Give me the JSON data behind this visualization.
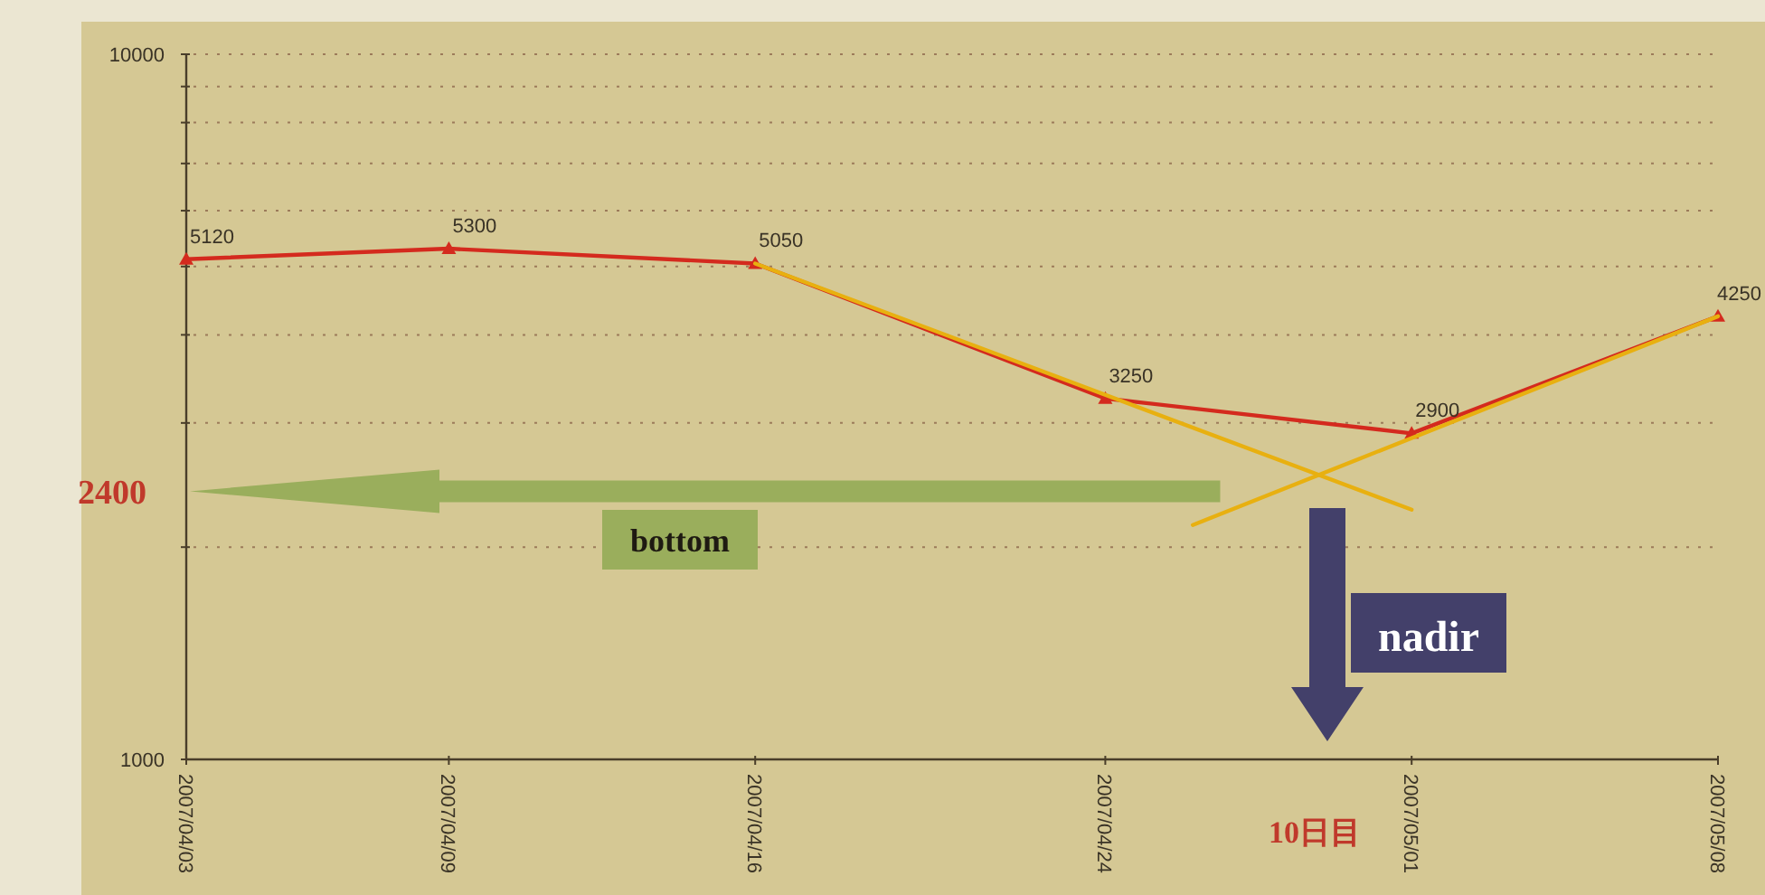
{
  "chart_data": {
    "type": "line",
    "log": "y",
    "grid": "y",
    "marker": "triangle",
    "line_style": "solid",
    "xlim": [
      "2007-04-03",
      "2007-05-08"
    ],
    "ylim": [
      1000,
      10000
    ],
    "xticks": [
      {
        "value": "2007-04-03",
        "label": "2007/04/03"
      },
      {
        "value": "2007-04-09",
        "label": "2007/04/09"
      },
      {
        "value": "2007-04-16",
        "label": "2007/04/16"
      },
      {
        "value": "2007-04-24",
        "label": "2007/04/24"
      },
      {
        "value": "2007-05-01",
        "label": "2007/05/01"
      },
      {
        "value": "2007-05-08",
        "label": "2007/05/08"
      }
    ],
    "yticks": [
      1000,
      {
        "value": 2000,
        "label": null
      },
      {
        "value": 3000,
        "label": null
      },
      {
        "value": 4000,
        "label": null
      },
      {
        "value": 5000,
        "label": null
      },
      {
        "value": 6000,
        "label": null
      },
      {
        "value": 7000,
        "label": null
      },
      {
        "value": 8000,
        "label": null
      },
      {
        "value": 9000,
        "label": null
      },
      10000
    ],
    "x": [
      "2007-04-03",
      "2007-04-09",
      "2007-04-16",
      "2007-04-24",
      "2007-05-01",
      "2007-05-08"
    ],
    "series": [
      {
        "color": "#d42a1e",
        "values": [
          5120,
          5300,
          5050,
          3250,
          2900,
          4250
        ],
        "data_labels": true
      },
      {
        "type": "line",
        "marker": "none",
        "color": "#e8b010",
        "x": [
          "2007-04-16",
          "2007-05-01"
        ],
        "values": [
          5050,
          2260
        ]
      },
      {
        "type": "line",
        "marker": "none",
        "color": "#e8b010",
        "x": [
          "2007-04-26",
          "2007-05-08"
        ],
        "values": [
          2150,
          4250
        ]
      }
    ],
    "ref_lines": [
      {
        "axis": "y",
        "value": 2400,
        "label": "2400",
        "color": "#9aae5c"
      }
    ],
    "annotations": [
      "bottom",
      "nadir",
      "10日目"
    ]
  }
}
